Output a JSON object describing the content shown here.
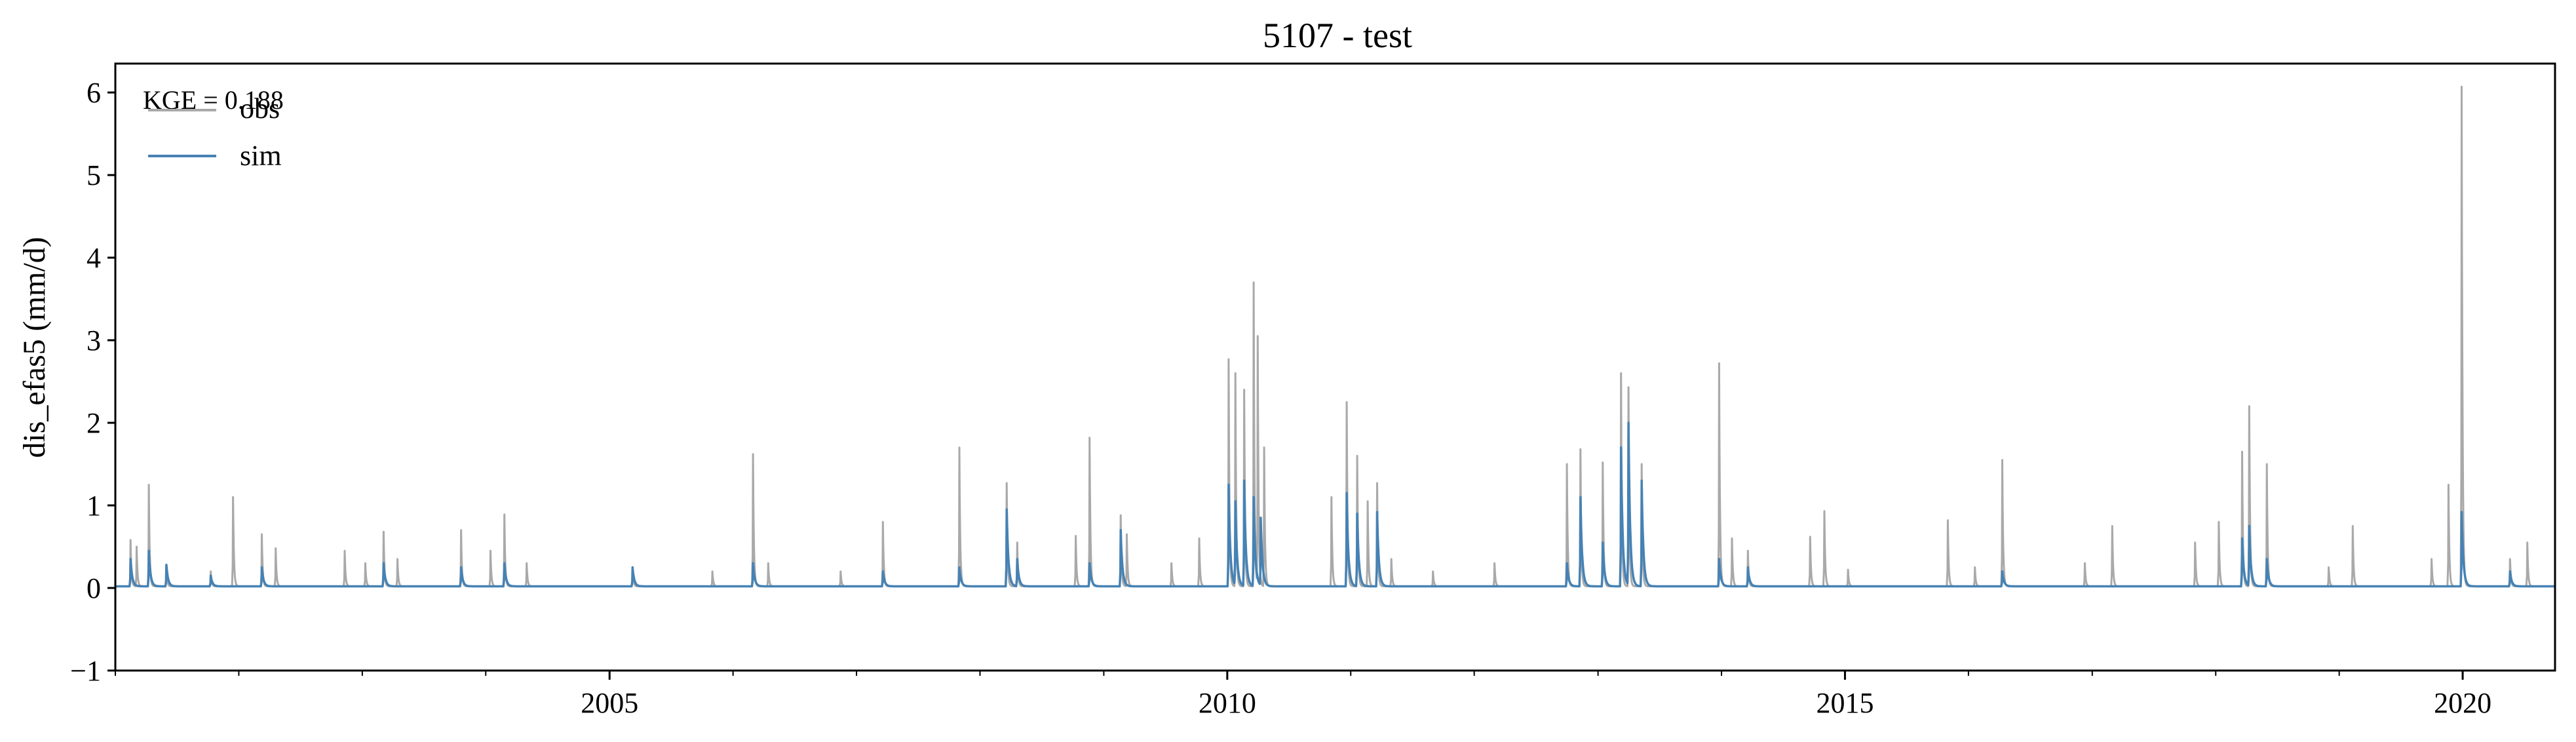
{
  "chart_data": {
    "type": "line",
    "title": "5107 - test",
    "ylabel": "dis_efas5 (mm/d)",
    "xlabel": "",
    "xlim": [
      "2001-01-01",
      "2020-09-30"
    ],
    "ylim": [
      -1,
      6.35
    ],
    "yticks": [
      -1,
      0,
      1,
      2,
      3,
      4,
      5,
      6
    ],
    "ytick_labels": [
      "−1",
      "0",
      "1",
      "2",
      "3",
      "4",
      "5",
      "6"
    ],
    "xticks": [
      "2005-01-01",
      "2010-01-01",
      "2015-01-01",
      "2020-01-01"
    ],
    "xtick_labels": [
      "2005",
      "2010",
      "2015",
      "2020"
    ],
    "grid": false,
    "legend_position": "top-left",
    "annotation": "KGE = 0.188",
    "baseline": 0.02,
    "series": [
      {
        "name": "obs",
        "color": "#a9a9a9",
        "events": [
          [
            "2001-02-15",
            0.58
          ],
          [
            "2001-03-05",
            0.5
          ],
          [
            "2001-04-10",
            1.25
          ],
          [
            "2001-06-01",
            0.25
          ],
          [
            "2001-10-10",
            0.2
          ],
          [
            "2001-12-15",
            1.1
          ],
          [
            "2002-03-10",
            0.65
          ],
          [
            "2002-04-20",
            0.48
          ],
          [
            "2002-11-10",
            0.45
          ],
          [
            "2003-01-10",
            0.3
          ],
          [
            "2003-03-05",
            0.68
          ],
          [
            "2003-04-15",
            0.35
          ],
          [
            "2003-10-20",
            0.7
          ],
          [
            "2004-01-15",
            0.45
          ],
          [
            "2004-02-25",
            0.89
          ],
          [
            "2004-05-01",
            0.3
          ],
          [
            "2005-03-10",
            0.25
          ],
          [
            "2005-11-01",
            0.2
          ],
          [
            "2006-03-01",
            1.62
          ],
          [
            "2006-04-15",
            0.3
          ],
          [
            "2006-11-15",
            0.2
          ],
          [
            "2007-03-20",
            0.8
          ],
          [
            "2007-11-01",
            1.7
          ],
          [
            "2008-03-20",
            1.27
          ],
          [
            "2008-04-20",
            0.55
          ],
          [
            "2008-10-10",
            0.63
          ],
          [
            "2008-11-20",
            1.82
          ],
          [
            "2009-02-20",
            0.88
          ],
          [
            "2009-03-10",
            0.65
          ],
          [
            "2009-07-20",
            0.3
          ],
          [
            "2009-10-10",
            0.6
          ],
          [
            "2010-01-05",
            2.77
          ],
          [
            "2010-01-25",
            2.6
          ],
          [
            "2010-02-20",
            2.4
          ],
          [
            "2010-03-20",
            3.7
          ],
          [
            "2010-04-01",
            3.05
          ],
          [
            "2010-04-20",
            1.7
          ],
          [
            "2010-11-05",
            1.1
          ],
          [
            "2010-12-20",
            2.25
          ],
          [
            "2011-01-20",
            1.6
          ],
          [
            "2011-02-20",
            1.05
          ],
          [
            "2011-03-20",
            1.27
          ],
          [
            "2011-05-01",
            0.35
          ],
          [
            "2011-09-01",
            0.2
          ],
          [
            "2012-03-01",
            0.3
          ],
          [
            "2012-10-01",
            1.5
          ],
          [
            "2012-11-10",
            1.68
          ],
          [
            "2013-01-15",
            1.52
          ],
          [
            "2013-03-10",
            2.6
          ],
          [
            "2013-04-01",
            2.43
          ],
          [
            "2013-05-10",
            1.5
          ],
          [
            "2013-12-25",
            2.72
          ],
          [
            "2014-02-01",
            0.6
          ],
          [
            "2014-03-20",
            0.45
          ],
          [
            "2014-09-20",
            0.62
          ],
          [
            "2014-11-01",
            0.93
          ],
          [
            "2015-01-10",
            0.22
          ],
          [
            "2015-11-01",
            0.82
          ],
          [
            "2016-01-20",
            0.25
          ],
          [
            "2016-04-10",
            1.55
          ],
          [
            "2016-12-10",
            0.3
          ],
          [
            "2017-03-01",
            0.75
          ],
          [
            "2017-11-01",
            0.55
          ],
          [
            "2018-01-10",
            0.8
          ],
          [
            "2018-03-20",
            1.65
          ],
          [
            "2018-04-10",
            2.2
          ],
          [
            "2018-06-01",
            1.5
          ],
          [
            "2018-12-01",
            0.25
          ],
          [
            "2019-02-10",
            0.75
          ],
          [
            "2019-10-01",
            0.35
          ],
          [
            "2019-11-20",
            1.25
          ],
          [
            "2019-12-29",
            6.07
          ],
          [
            "2020-05-20",
            0.35
          ],
          [
            "2020-07-10",
            0.55
          ]
        ]
      },
      {
        "name": "sim",
        "color": "#4682b4",
        "events": [
          [
            "2001-02-15",
            0.35
          ],
          [
            "2001-04-10",
            0.45
          ],
          [
            "2001-06-01",
            0.28
          ],
          [
            "2001-10-10",
            0.15
          ],
          [
            "2002-03-10",
            0.25
          ],
          [
            "2003-03-05",
            0.3
          ],
          [
            "2003-10-20",
            0.25
          ],
          [
            "2004-02-25",
            0.3
          ],
          [
            "2005-03-10",
            0.25
          ],
          [
            "2006-03-01",
            0.3
          ],
          [
            "2007-03-20",
            0.2
          ],
          [
            "2007-11-01",
            0.25
          ],
          [
            "2008-03-20",
            0.95
          ],
          [
            "2008-04-20",
            0.35
          ],
          [
            "2008-11-20",
            0.3
          ],
          [
            "2009-02-20",
            0.7
          ],
          [
            "2010-01-05",
            1.25
          ],
          [
            "2010-01-25",
            1.05
          ],
          [
            "2010-02-20",
            1.3
          ],
          [
            "2010-03-20",
            1.1
          ],
          [
            "2010-04-10",
            0.85
          ],
          [
            "2010-12-20",
            1.15
          ],
          [
            "2011-01-20",
            0.9
          ],
          [
            "2011-03-20",
            0.92
          ],
          [
            "2012-10-01",
            0.3
          ],
          [
            "2012-11-10",
            1.1
          ],
          [
            "2013-01-15",
            0.55
          ],
          [
            "2013-03-10",
            1.7
          ],
          [
            "2013-04-01",
            2.0
          ],
          [
            "2013-05-10",
            1.3
          ],
          [
            "2013-12-25",
            0.35
          ],
          [
            "2014-03-20",
            0.25
          ],
          [
            "2016-04-10",
            0.2
          ],
          [
            "2018-03-20",
            0.6
          ],
          [
            "2018-04-10",
            0.75
          ],
          [
            "2018-06-01",
            0.35
          ],
          [
            "2019-12-29",
            0.92
          ],
          [
            "2020-05-20",
            0.2
          ]
        ]
      }
    ]
  }
}
